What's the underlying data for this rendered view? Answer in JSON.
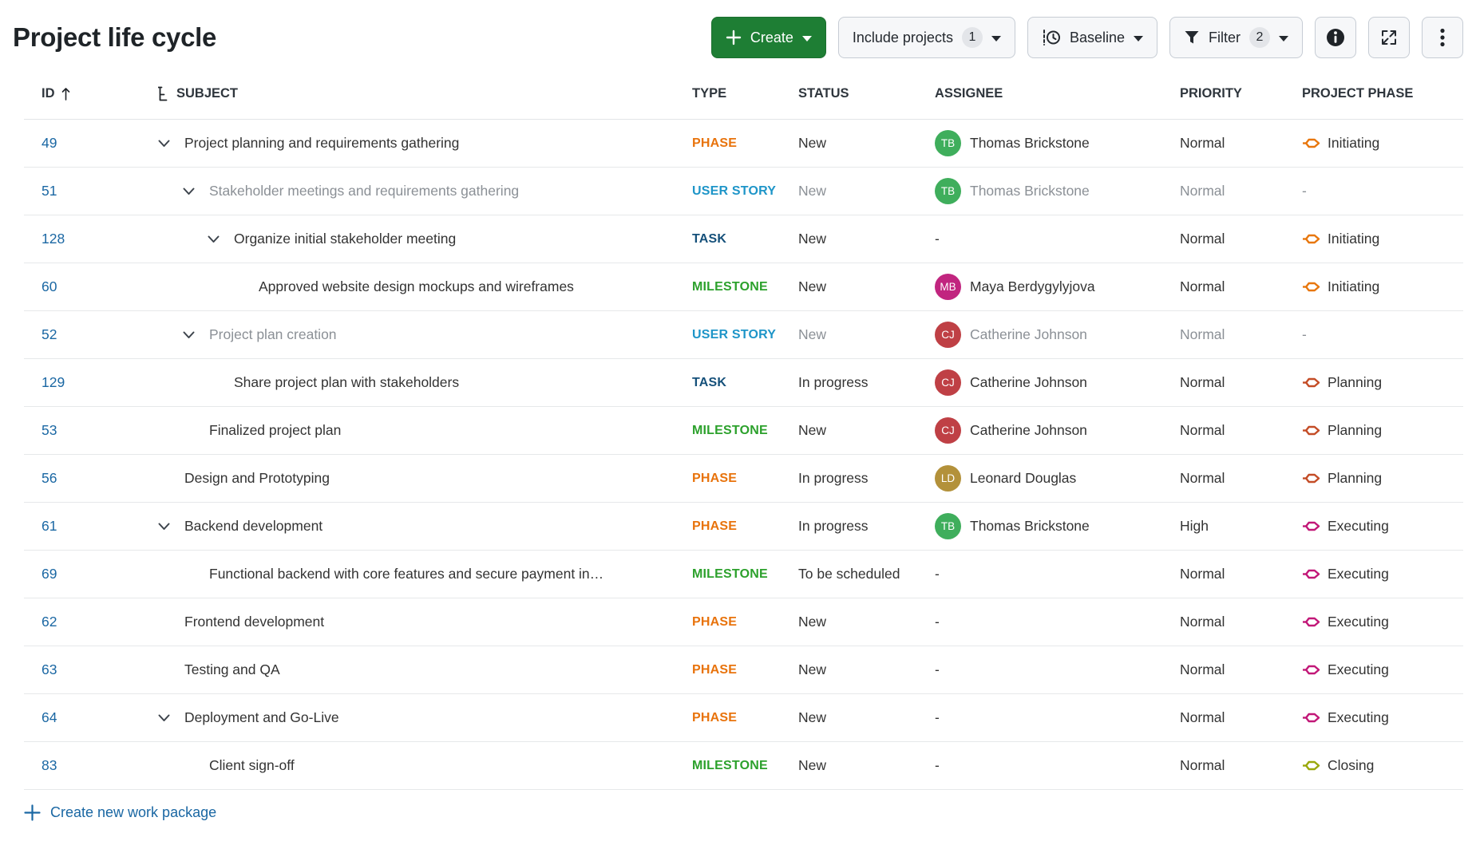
{
  "page": {
    "title": "Project life cycle"
  },
  "toolbar": {
    "create_label": "Create",
    "include_projects_label": "Include projects",
    "include_projects_count": "1",
    "baseline_label": "Baseline",
    "filter_label": "Filter",
    "filter_count": "2"
  },
  "icons": {
    "plus-icon": "+",
    "dropdown-caret-icon": "▾",
    "baseline-clock-icon": "clock with dashed line",
    "filter-funnel-icon": "funnel",
    "info-icon": "circled i",
    "fullscreen-icon": "expand arrows",
    "kebab-menu-icon": "⋮",
    "sort-ascending-icon": "↑",
    "hierarchy-icon": "tree outdent",
    "collapse-chevron-icon": "v",
    "project-phase-gate-icon": "hexagonal gate arrow"
  },
  "colors": {
    "accent_green": "#1e7e34",
    "link_blue": "#1a67a3",
    "dimmed_text": "#8b9096",
    "row_border": "#e6e8ea"
  },
  "table": {
    "columns": {
      "id": "ID",
      "subject": "SUBJECT",
      "type": "TYPE",
      "status": "STATUS",
      "assignee": "ASSIGNEE",
      "priority": "PRIORITY",
      "project_phase": "PROJECT PHASE"
    },
    "type_colors": {
      "PHASE": "#e8730c",
      "USER STORY": "#1e95c8",
      "TASK": "#15507a",
      "MILESTONE": "#2ca12c"
    },
    "empty_value": "-",
    "rows": [
      {
        "id": "49",
        "level": 0,
        "has_chevron": true,
        "subject": "Project planning and requirements gathering",
        "type": "PHASE",
        "status": "New",
        "assignee": {
          "initials": "TB",
          "name": "Thomas Brickstone",
          "color": "#3fae5c"
        },
        "priority": "Normal",
        "phase": {
          "label": "Initiating",
          "color": "#e8770e"
        },
        "dimmed": false
      },
      {
        "id": "51",
        "level": 1,
        "has_chevron": true,
        "subject": "Stakeholder meetings and requirements gathering",
        "type": "USER STORY",
        "status": "New",
        "assignee": {
          "initials": "TB",
          "name": "Thomas Brickstone",
          "color": "#3fae5c"
        },
        "priority": "Normal",
        "phase": null,
        "dimmed": true
      },
      {
        "id": "128",
        "level": 2,
        "has_chevron": true,
        "subject": "Organize initial stakeholder meeting",
        "type": "TASK",
        "status": "New",
        "assignee": null,
        "priority": "Normal",
        "phase": {
          "label": "Initiating",
          "color": "#e8770e"
        },
        "dimmed": false
      },
      {
        "id": "60",
        "level": 3,
        "has_chevron": false,
        "subject": "Approved website design mockups and wireframes",
        "type": "MILESTONE",
        "status": "New",
        "assignee": {
          "initials": "MB",
          "name": "Maya Berdygylyjova",
          "color": "#c1257f"
        },
        "priority": "Normal",
        "phase": {
          "label": "Initiating",
          "color": "#e8770e"
        },
        "dimmed": false
      },
      {
        "id": "52",
        "level": 1,
        "has_chevron": true,
        "subject": "Project plan creation",
        "type": "USER STORY",
        "status": "New",
        "assignee": {
          "initials": "CJ",
          "name": "Catherine Johnson",
          "color": "#bf4045"
        },
        "priority": "Normal",
        "phase": null,
        "dimmed": true
      },
      {
        "id": "129",
        "level": 2,
        "has_chevron": false,
        "subject": "Share project plan with stakeholders",
        "type": "TASK",
        "status": "In progress",
        "assignee": {
          "initials": "CJ",
          "name": "Catherine Johnson",
          "color": "#bf4045"
        },
        "priority": "Normal",
        "phase": {
          "label": "Planning",
          "color": "#c44d27"
        },
        "dimmed": false
      },
      {
        "id": "53",
        "level": 1,
        "has_chevron": false,
        "subject": "Finalized project plan",
        "type": "MILESTONE",
        "status": "New",
        "assignee": {
          "initials": "CJ",
          "name": "Catherine Johnson",
          "color": "#bf4045"
        },
        "priority": "Normal",
        "phase": {
          "label": "Planning",
          "color": "#c44d27"
        },
        "dimmed": false
      },
      {
        "id": "56",
        "level": 0,
        "has_chevron": false,
        "subject": "Design and Prototyping",
        "type": "PHASE",
        "status": "In progress",
        "assignee": {
          "initials": "LD",
          "name": "Leonard Douglas",
          "color": "#b3913a"
        },
        "priority": "Normal",
        "phase": {
          "label": "Planning",
          "color": "#c44d27"
        },
        "dimmed": false
      },
      {
        "id": "61",
        "level": 0,
        "has_chevron": true,
        "subject": "Backend development",
        "type": "PHASE",
        "status": "In progress",
        "assignee": {
          "initials": "TB",
          "name": "Thomas Brickstone",
          "color": "#3fae5c"
        },
        "priority": "High",
        "phase": {
          "label": "Executing",
          "color": "#c21878"
        },
        "dimmed": false
      },
      {
        "id": "69",
        "level": 1,
        "has_chevron": false,
        "subject": "Functional backend with core features and secure payment in…",
        "type": "MILESTONE",
        "status": "To be scheduled",
        "assignee": null,
        "priority": "Normal",
        "phase": {
          "label": "Executing",
          "color": "#c21878"
        },
        "dimmed": false
      },
      {
        "id": "62",
        "level": 0,
        "has_chevron": false,
        "subject": "Frontend development",
        "type": "PHASE",
        "status": "New",
        "assignee": null,
        "priority": "Normal",
        "phase": {
          "label": "Executing",
          "color": "#c21878"
        },
        "dimmed": false
      },
      {
        "id": "63",
        "level": 0,
        "has_chevron": false,
        "subject": "Testing and QA",
        "type": "PHASE",
        "status": "New",
        "assignee": null,
        "priority": "Normal",
        "phase": {
          "label": "Executing",
          "color": "#c21878"
        },
        "dimmed": false
      },
      {
        "id": "64",
        "level": 0,
        "has_chevron": true,
        "subject": "Deployment and Go-Live",
        "type": "PHASE",
        "status": "New",
        "assignee": null,
        "priority": "Normal",
        "phase": {
          "label": "Executing",
          "color": "#c21878"
        },
        "dimmed": false
      },
      {
        "id": "83",
        "level": 1,
        "has_chevron": false,
        "subject": "Client sign-off",
        "type": "MILESTONE",
        "status": "New",
        "assignee": null,
        "priority": "Normal",
        "phase": {
          "label": "Closing",
          "color": "#9aa80b"
        },
        "dimmed": false
      }
    ]
  },
  "footer": {
    "create_link": "Create new work package"
  }
}
